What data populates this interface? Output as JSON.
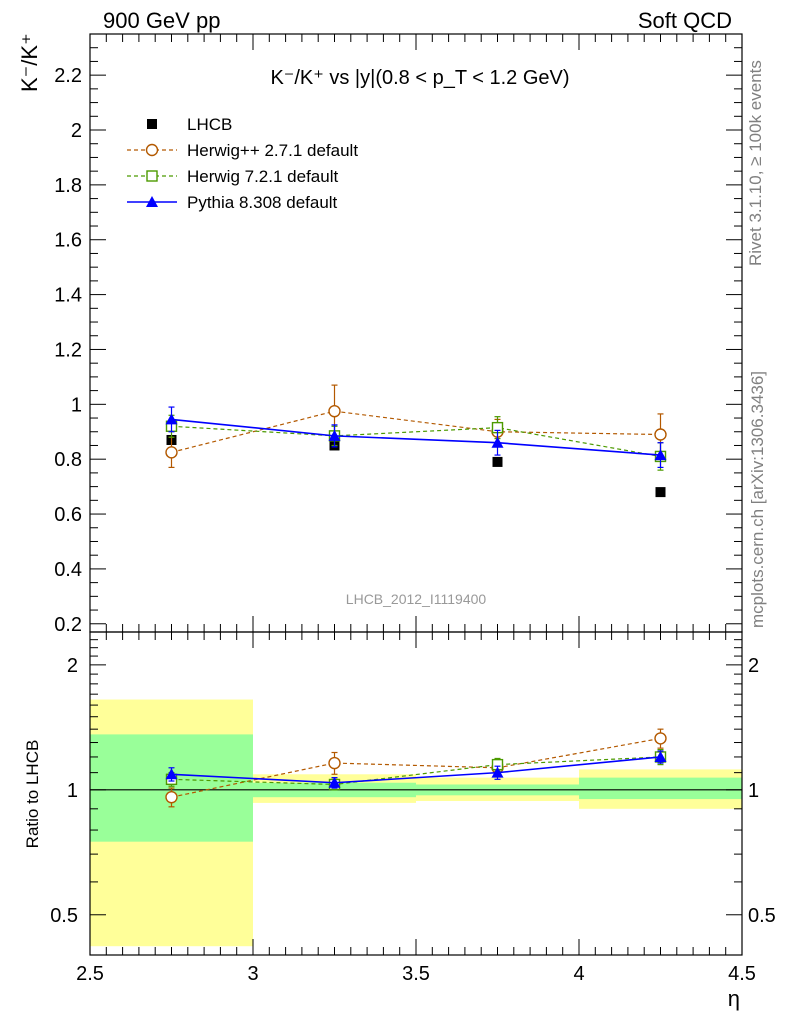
{
  "header": {
    "left": "900 GeV pp",
    "right": "Soft QCD"
  },
  "side_labels": {
    "rivet": "Rivet 3.1.10, ≥ 100k events",
    "site": "mcplots.cern.ch [arXiv:1306.3436]"
  },
  "chart_data": {
    "type": "scatter",
    "title": "K⁻/K⁺ vs |y|(0.8 < p_T < 1.2 GeV)",
    "watermark": "LHCB_2012_I1119400",
    "xlabel": "η",
    "ylabel": "K⁻/K⁺",
    "xlim": [
      2.5,
      4.5
    ],
    "ylim": [
      0.17,
      2.35
    ],
    "xticks": [
      "2.5",
      "3",
      "3.5",
      "4",
      "4.5"
    ],
    "yticks": [
      "0.2",
      "0.4",
      "0.6",
      "0.8",
      "1",
      "1.2",
      "1.4",
      "1.6",
      "1.8",
      "2",
      "2.2"
    ],
    "grid": false,
    "legend_position": "top-left",
    "x": [
      2.75,
      3.25,
      3.75,
      4.25
    ],
    "series": [
      {
        "name": "LHCB",
        "color": "#000000",
        "marker": "filled-square",
        "line": "none",
        "values": [
          0.87,
          0.85,
          0.79,
          0.68
        ],
        "errors": [
          0,
          0,
          0,
          0
        ]
      },
      {
        "name": "Herwig++ 2.7.1 default",
        "color": "#b35900",
        "marker": "open-circle",
        "line": "dashed",
        "values": [
          0.825,
          0.975,
          0.9,
          0.89
        ],
        "errors": [
          0.055,
          0.095,
          0.045,
          0.075
        ]
      },
      {
        "name": "Herwig 7.2.1 default",
        "color": "#4c9a00",
        "marker": "open-square",
        "line": "dashed",
        "values": [
          0.92,
          0.885,
          0.915,
          0.81
        ],
        "errors": [
          0.04,
          0.035,
          0.04,
          0.05
        ]
      },
      {
        "name": "Pythia 8.308 default",
        "color": "#0000ff",
        "marker": "filled-triangle",
        "line": "solid",
        "values": [
          0.945,
          0.885,
          0.86,
          0.815
        ],
        "errors": [
          0.045,
          0.04,
          0.045,
          0.045
        ]
      }
    ],
    "ratio": {
      "ylabel": "Ratio to LHCB",
      "yticks": [
        "0.5",
        "1",
        "2"
      ],
      "ylim": [
        0.4,
        2.4
      ],
      "scale": "log",
      "bands": [
        {
          "x0": 2.5,
          "x1": 3.0,
          "outer": [
            0.42,
            1.65
          ],
          "inner": [
            0.75,
            1.36
          ]
        },
        {
          "x0": 3.0,
          "x1": 3.5,
          "outer": [
            0.93,
            1.09
          ],
          "inner": [
            0.96,
            1.04
          ]
        },
        {
          "x0": 3.5,
          "x1": 4.0,
          "outer": [
            0.94,
            1.07
          ],
          "inner": [
            0.97,
            1.03
          ]
        },
        {
          "x0": 4.0,
          "x1": 4.5,
          "outer": [
            0.9,
            1.12
          ],
          "inner": [
            0.95,
            1.07
          ]
        }
      ],
      "series": [
        {
          "name": "Herwig++ 2.7.1 default",
          "values": [
            0.96,
            1.16,
            1.13,
            1.33
          ],
          "errors": [
            0.05,
            0.07,
            0.05,
            0.07
          ]
        },
        {
          "name": "Herwig 7.2.1 default",
          "values": [
            1.06,
            1.03,
            1.15,
            1.2
          ],
          "errors": [
            0.04,
            0.03,
            0.04,
            0.05
          ]
        },
        {
          "name": "Pythia 8.308 default",
          "values": [
            1.09,
            1.04,
            1.1,
            1.2
          ],
          "errors": [
            0.04,
            0.03,
            0.04,
            0.04
          ]
        }
      ]
    }
  }
}
